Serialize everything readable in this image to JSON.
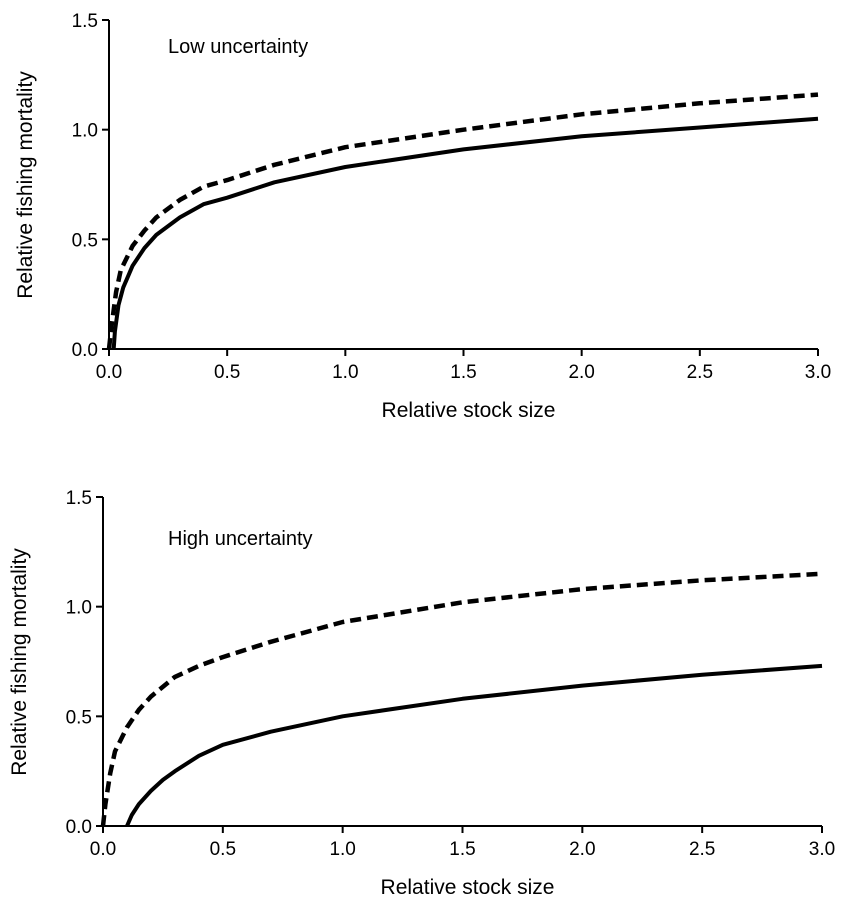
{
  "chart_data": [
    {
      "type": "line",
      "title": "Low uncertainty",
      "xlabel": "Relative stock size",
      "ylabel": "Relative fishing mortality",
      "xlim": [
        0.0,
        3.0
      ],
      "ylim": [
        0.0,
        1.5
      ],
      "x_ticks": [
        "0.0",
        "0.5",
        "1.0",
        "1.5",
        "2.0",
        "2.5",
        "3.0"
      ],
      "y_ticks": [
        "0.0",
        "0.5",
        "1.0",
        "1.5"
      ],
      "grid": false,
      "series": [
        {
          "style": "dashed",
          "color": "#000000",
          "x": [
            0.0,
            0.01,
            0.03,
            0.05,
            0.1,
            0.15,
            0.2,
            0.3,
            0.4,
            0.5,
            0.7,
            1.0,
            1.5,
            2.0,
            2.5,
            3.0
          ],
          "y": [
            0.0,
            0.1,
            0.26,
            0.36,
            0.47,
            0.54,
            0.6,
            0.68,
            0.74,
            0.77,
            0.84,
            0.92,
            1.0,
            1.07,
            1.12,
            1.16
          ]
        },
        {
          "style": "solid",
          "color": "#000000",
          "x": [
            0.02,
            0.025,
            0.04,
            0.06,
            0.1,
            0.15,
            0.2,
            0.3,
            0.4,
            0.5,
            0.7,
            1.0,
            1.5,
            2.0,
            2.5,
            3.0
          ],
          "y": [
            0.0,
            0.08,
            0.2,
            0.28,
            0.38,
            0.46,
            0.52,
            0.6,
            0.66,
            0.69,
            0.76,
            0.83,
            0.91,
            0.97,
            1.01,
            1.05
          ]
        }
      ]
    },
    {
      "type": "line",
      "title": "High uncertainty",
      "xlabel": "Relative stock size",
      "ylabel": "Relative fishing mortality",
      "xlim": [
        0.0,
        3.0
      ],
      "ylim": [
        0.0,
        1.5
      ],
      "x_ticks": [
        "0.0",
        "0.5",
        "1.0",
        "1.5",
        "2.0",
        "2.5",
        "3.0"
      ],
      "y_ticks": [
        "0.0",
        "0.5",
        "1.0",
        "1.5"
      ],
      "grid": false,
      "series": [
        {
          "style": "dashed",
          "color": "#000000",
          "x": [
            0.0,
            0.01,
            0.03,
            0.05,
            0.1,
            0.15,
            0.2,
            0.3,
            0.4,
            0.5,
            0.7,
            1.0,
            1.5,
            2.0,
            2.5,
            3.0
          ],
          "y": [
            0.0,
            0.1,
            0.24,
            0.34,
            0.45,
            0.53,
            0.59,
            0.68,
            0.73,
            0.77,
            0.84,
            0.93,
            1.02,
            1.08,
            1.12,
            1.15
          ]
        },
        {
          "style": "solid",
          "color": "#000000",
          "x": [
            0.1,
            0.12,
            0.15,
            0.2,
            0.25,
            0.3,
            0.4,
            0.5,
            0.7,
            1.0,
            1.5,
            2.0,
            2.5,
            3.0
          ],
          "y": [
            0.0,
            0.05,
            0.1,
            0.16,
            0.21,
            0.25,
            0.32,
            0.37,
            0.43,
            0.5,
            0.58,
            0.64,
            0.69,
            0.73
          ]
        }
      ]
    }
  ]
}
